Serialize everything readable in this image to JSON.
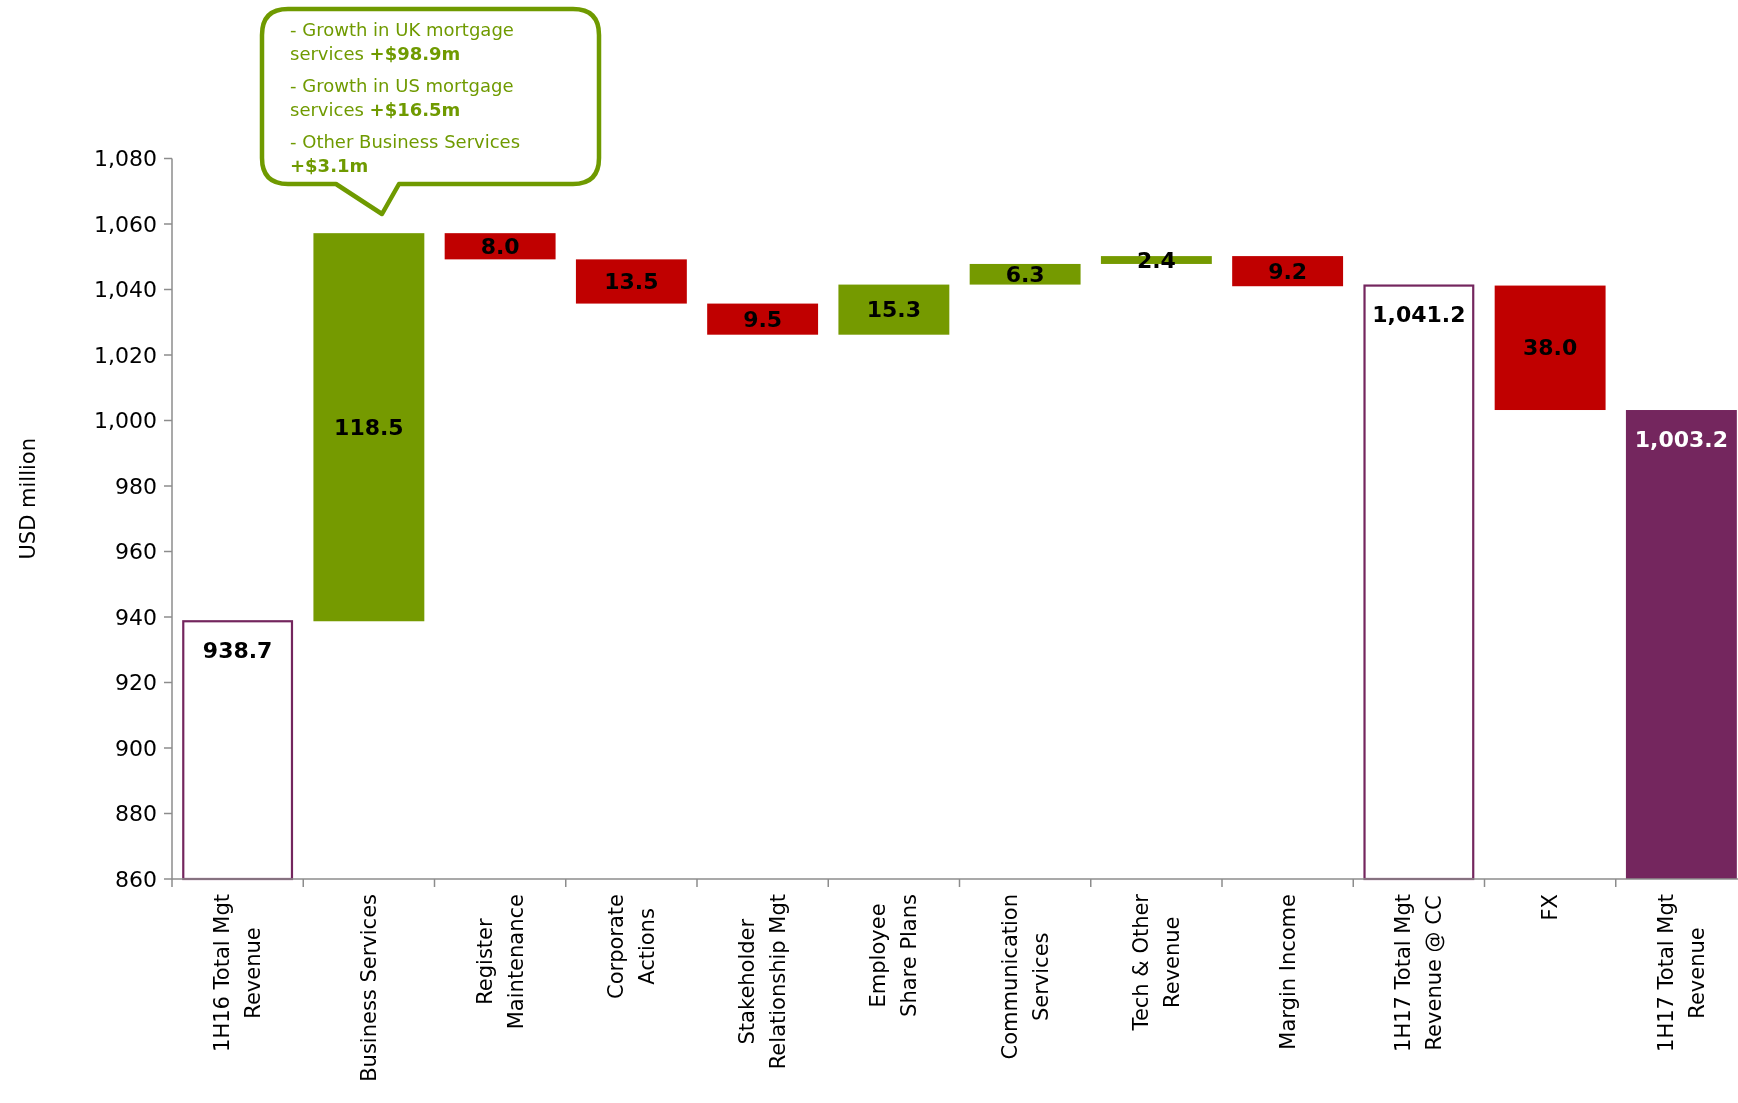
{
  "chart_data": {
    "type": "bar",
    "ylabel": "USD million",
    "categories": [
      "1H16 Total Mgt\nRevenue",
      "Business Services",
      "Register\nMaintenance",
      "Corporate\nActions",
      "Stakeholder\nRelationship Mgt",
      "Employee\nShare Plans",
      "Communication\nServices",
      "Tech & Other\nRevenue",
      "Margin Income",
      "1H17 Total Mgt\nRevenue @ CC",
      "FX",
      "1H17 Total Mgt\nRevenue"
    ],
    "values": [
      938.7,
      118.5,
      -8.0,
      -13.5,
      -9.5,
      15.3,
      6.3,
      2.4,
      -9.2,
      1041.2,
      -38.0,
      1003.2
    ],
    "base": [
      null,
      938.7,
      1057.2,
      1049.2,
      1035.7,
      1026.2,
      1041.5,
      1047.8,
      1050.2,
      null,
      1041.2,
      null
    ],
    "colors": [
      "#ffffff",
      "#759a00",
      "#c00000",
      "#c00000",
      "#c00000",
      "#759a00",
      "#759a00",
      "#759a00",
      "#c00000",
      "#ffffff",
      "#c00000",
      "#74265e"
    ],
    "value_labels": [
      "938.7",
      "118.5",
      "8.0",
      "13.5",
      "9.5",
      "15.3",
      "6.3",
      "2.4",
      "9.2",
      "1,041.2",
      "38.0",
      "1,003.2"
    ],
    "ylim": [
      860,
      1080
    ],
    "yticks": [
      860,
      880,
      900,
      920,
      940,
      960,
      980,
      {
        "value": 1000,
        "label": "1,000"
      },
      {
        "value": 1020,
        "label": "1,020"
      },
      {
        "value": 1040,
        "label": "1,040"
      },
      {
        "value": 1060,
        "label": "1,060"
      },
      {
        "value": 1080,
        "label": "1,080"
      }
    ],
    "annotations": [
      "- Growth in UK mortgage services +$98.9m\n- Growth in US mortgage services +$16.5m\n- Other Business Services +$3.1m"
    ]
  }
}
